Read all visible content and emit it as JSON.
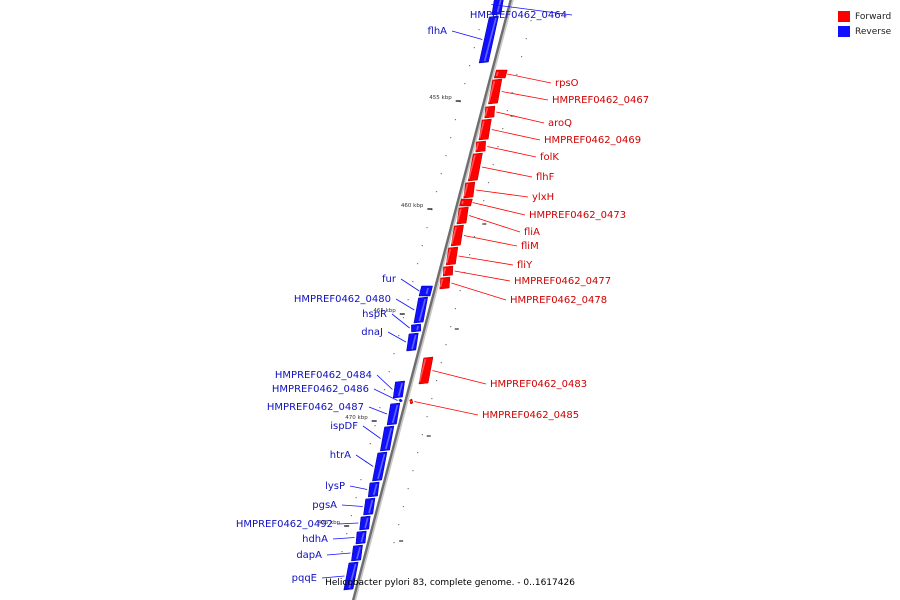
{
  "legend": {
    "forward_label": "Forward",
    "reverse_label": "Reverse",
    "forward_color": "#ff0000",
    "reverse_color": "#1010ff"
  },
  "caption": "Helicobacter pylori 83, complete genome. - 0..1617426",
  "scale_ticks": [
    {
      "label": "455 kbp",
      "pos_kbp": 455
    },
    {
      "label": "460 kbp",
      "pos_kbp": 460
    },
    {
      "label": "465 kbp",
      "pos_kbp": 465
    },
    {
      "label": "470 kbp",
      "pos_kbp": 470
    },
    {
      "label": "475 kbp",
      "pos_kbp": 475
    }
  ],
  "genes": [
    {
      "name": "HMPREF0462_0464",
      "strand": "reverse"
    },
    {
      "name": "flhA",
      "strand": "reverse"
    },
    {
      "name": "rpsO",
      "strand": "forward"
    },
    {
      "name": "HMPREF0462_0467",
      "strand": "forward"
    },
    {
      "name": "aroQ",
      "strand": "forward"
    },
    {
      "name": "HMPREF0462_0469",
      "strand": "forward"
    },
    {
      "name": "folK",
      "strand": "forward"
    },
    {
      "name": "flhF",
      "strand": "forward"
    },
    {
      "name": "ylxH",
      "strand": "forward"
    },
    {
      "name": "HMPREF0462_0473",
      "strand": "forward"
    },
    {
      "name": "fliA",
      "strand": "forward"
    },
    {
      "name": "fliM",
      "strand": "forward"
    },
    {
      "name": "fliY",
      "strand": "forward"
    },
    {
      "name": "HMPREF0462_0477",
      "strand": "forward"
    },
    {
      "name": "HMPREF0462_0478",
      "strand": "forward"
    },
    {
      "name": "fur",
      "strand": "reverse"
    },
    {
      "name": "HMPREF0462_0480",
      "strand": "reverse"
    },
    {
      "name": "hspR",
      "strand": "reverse"
    },
    {
      "name": "dnaJ",
      "strand": "reverse"
    },
    {
      "name": "HMPREF0462_0483",
      "strand": "forward"
    },
    {
      "name": "HMPREF0462_0484",
      "strand": "reverse"
    },
    {
      "name": "HMPREF0462_0485",
      "strand": "forward"
    },
    {
      "name": "HMPREF0462_0486",
      "strand": "reverse"
    },
    {
      "name": "HMPREF0462_0487",
      "strand": "reverse"
    },
    {
      "name": "ispDF",
      "strand": "reverse"
    },
    {
      "name": "htrA",
      "strand": "reverse"
    },
    {
      "name": "lysP",
      "strand": "reverse"
    },
    {
      "name": "pgsA",
      "strand": "reverse"
    },
    {
      "name": "HMPREF0462_0492",
      "strand": "reverse"
    },
    {
      "name": "hdhA",
      "strand": "reverse"
    },
    {
      "name": "dapA",
      "strand": "reverse"
    },
    {
      "name": "pqqE",
      "strand": "reverse"
    }
  ]
}
